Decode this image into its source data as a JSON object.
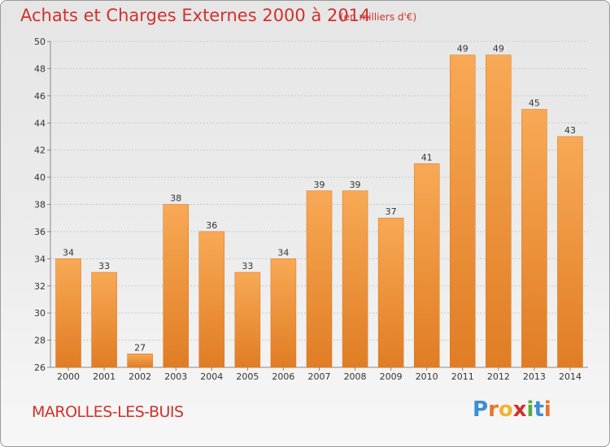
{
  "header": {
    "title": "Achats et Charges Externes 2000 à 2014",
    "subtitle": "(en milliers d'€)"
  },
  "footer": {
    "town": "MAROLLES-LES-BUIS",
    "logo": [
      "P",
      "r",
      "o",
      "x",
      "i",
      "t",
      "i"
    ],
    "logo_colors": [
      "#3b8fd4",
      "#e8742a",
      "#f2b430",
      "#d0312d",
      "#5aaa3c",
      "#3b8fd4",
      "#e8742a"
    ]
  },
  "colors": {
    "bar_light": "#f8a955",
    "bar_dark": "#e07d24",
    "text": "#d0312d"
  },
  "chart_data": {
    "type": "bar",
    "title": "Achats et Charges Externes 2000 à 2014",
    "subtitle": "(en milliers d'€)",
    "categories": [
      "2000",
      "2001",
      "2002",
      "2003",
      "2004",
      "2005",
      "2006",
      "2007",
      "2008",
      "2009",
      "2010",
      "2011",
      "2012",
      "2013",
      "2014"
    ],
    "values": [
      34,
      33,
      27,
      38,
      36,
      33,
      34,
      39,
      39,
      37,
      41,
      49,
      49,
      45,
      43
    ],
    "ylim": [
      26,
      50
    ],
    "yticks": [
      26,
      28,
      30,
      32,
      34,
      36,
      38,
      40,
      42,
      44,
      46,
      48,
      50
    ],
    "grid": true,
    "data_labels": true
  }
}
